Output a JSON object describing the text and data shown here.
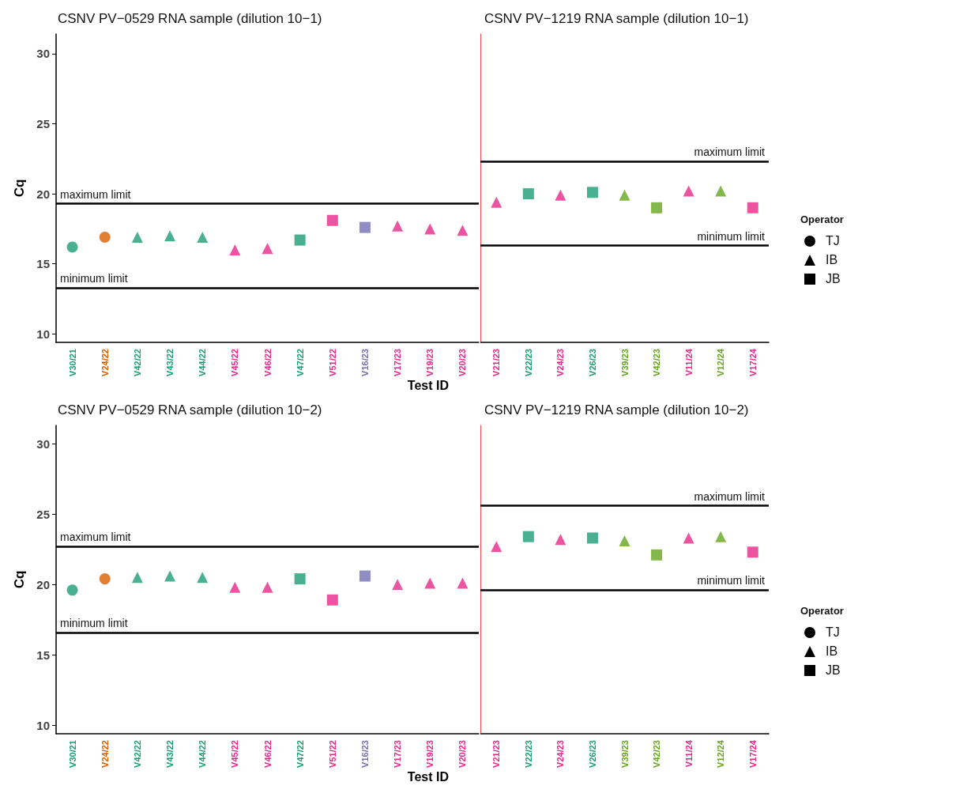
{
  "chart_data": [
    {
      "type": "scatter",
      "title": "CSNV PV−0529 RNA sample (dilution 10−1)",
      "xlabel": "Test ID",
      "ylabel": "Cq",
      "categories": [
        "V30/21",
        "V24/22",
        "V42/22",
        "V43/22",
        "V44/22",
        "V45/22",
        "V46/22",
        "V47/22",
        "V51/22",
        "V16/23",
        "V17/23",
        "V19/23",
        "V20/23"
      ],
      "ylim": [
        9.4,
        31.4
      ],
      "yticks": [
        10,
        15,
        20,
        25,
        30
      ],
      "grid": false,
      "series": [
        {
          "marker": "circle",
          "values": [
            16.2,
            16.9,
            null,
            null,
            null,
            null,
            null,
            null,
            null,
            null,
            null,
            null,
            null
          ],
          "colors": [
            "#1b9e77",
            "#d95f02",
            null,
            null,
            null,
            null,
            null,
            null,
            null,
            null,
            null,
            null,
            null
          ]
        },
        {
          "marker": "triangle",
          "values": [
            null,
            null,
            16.9,
            17.0,
            16.9,
            16.0,
            16.1,
            null,
            null,
            null,
            17.7,
            17.5,
            17.4
          ],
          "colors": [
            null,
            null,
            "#1b9e77",
            "#1b9e77",
            "#1b9e77",
            "#e7298a",
            "#e7298a",
            null,
            null,
            null,
            "#e7298a",
            "#e7298a",
            "#e7298a"
          ]
        },
        {
          "marker": "square",
          "values": [
            null,
            null,
            null,
            null,
            null,
            null,
            null,
            16.7,
            18.1,
            17.6,
            null,
            null,
            null
          ],
          "colors": [
            null,
            null,
            null,
            null,
            null,
            null,
            null,
            "#1b9e77",
            "#e7298a",
            "#7570b3",
            null,
            null,
            null
          ]
        }
      ],
      "ref_lines": [
        {
          "axis": "y",
          "value": 19.3,
          "label": "maximum limit"
        },
        {
          "axis": "y",
          "value": 13.3,
          "label": "minimum limit"
        }
      ]
    },
    {
      "type": "scatter",
      "title": "CSNV PV−1219 RNA sample (dilution 10−1)",
      "categories": [
        "V21/23",
        "V22/23",
        "V24/23",
        "V26/23",
        "V39/23",
        "V42/23",
        "V11/24",
        "V12/24",
        "V17/24"
      ],
      "ylim": [
        9.4,
        31.4
      ],
      "yticks": [
        10,
        15,
        20,
        25,
        30
      ],
      "tick_labels": "x",
      "grid": false,
      "annotations": [
        "Operator",
        "TJ",
        "IB",
        "JB"
      ],
      "series": [
        {
          "marker": "triangle",
          "values": [
            19.4,
            null,
            19.9,
            null,
            19.9,
            null,
            20.2,
            20.2,
            null
          ],
          "colors": [
            "#e7298a",
            null,
            "#e7298a",
            null,
            "#66a61e",
            null,
            "#e7298a",
            "#66a61e",
            null
          ]
        },
        {
          "marker": "square",
          "values": [
            null,
            20.0,
            null,
            20.1,
            null,
            19.0,
            null,
            null,
            19.0
          ],
          "colors": [
            null,
            "#1b9e77",
            null,
            "#1b9e77",
            null,
            "#66a61e",
            null,
            null,
            "#e7298a"
          ]
        }
      ],
      "ref_lines": [
        {
          "axis": "y",
          "value": 22.3,
          "label": "maximum limit"
        },
        {
          "axis": "y",
          "value": 16.3,
          "label": "minimum limit"
        }
      ]
    },
    {
      "type": "scatter",
      "title": "CSNV PV−0529 RNA sample (dilution 10−2)",
      "xlabel": "Test ID",
      "ylabel": "Cq",
      "categories": [
        "V30/21",
        "V24/22",
        "V42/22",
        "V43/22",
        "V44/22",
        "V45/22",
        "V46/22",
        "V47/22",
        "V51/22",
        "V16/23",
        "V17/23",
        "V19/23",
        "V20/23"
      ],
      "ylim": [
        9.4,
        31.3
      ],
      "yticks": [
        10,
        15,
        20,
        25,
        30
      ],
      "grid": false,
      "series": [
        {
          "marker": "circle",
          "values": [
            19.6,
            20.4,
            null,
            null,
            null,
            null,
            null,
            null,
            null,
            null,
            null,
            null,
            null
          ],
          "colors": [
            "#1b9e77",
            "#d95f02",
            null,
            null,
            null,
            null,
            null,
            null,
            null,
            null,
            null,
            null,
            null
          ]
        },
        {
          "marker": "triangle",
          "values": [
            null,
            null,
            20.5,
            20.6,
            20.5,
            19.8,
            19.8,
            null,
            null,
            null,
            20.0,
            20.1,
            20.1
          ],
          "colors": [
            null,
            null,
            "#1b9e77",
            "#1b9e77",
            "#1b9e77",
            "#e7298a",
            "#e7298a",
            null,
            null,
            null,
            "#e7298a",
            "#e7298a",
            "#e7298a"
          ]
        },
        {
          "marker": "square",
          "values": [
            null,
            null,
            null,
            null,
            null,
            null,
            null,
            20.4,
            18.9,
            20.6,
            null,
            null,
            null
          ],
          "colors": [
            null,
            null,
            null,
            null,
            null,
            null,
            null,
            "#1b9e77",
            "#e7298a",
            "#7570b3",
            null,
            null,
            null
          ]
        }
      ],
      "ref_lines": [
        {
          "axis": "y",
          "value": 22.7,
          "label": "maximum limit"
        },
        {
          "axis": "y",
          "value": 16.6,
          "label": "minimum limit"
        }
      ]
    },
    {
      "type": "scatter",
      "title": "CSNV PV−1219 RNA sample (dilution 10−2)",
      "categories": [
        "V21/23",
        "V22/23",
        "V24/23",
        "V26/23",
        "V39/23",
        "V42/23",
        "V11/24",
        "V12/24",
        "V17/24"
      ],
      "ylim": [
        9.4,
        31.3
      ],
      "yticks": [
        10,
        15,
        20,
        25,
        30
      ],
      "tick_labels": "x",
      "grid": false,
      "annotations": [
        "Operator",
        "TJ",
        "IB",
        "JB"
      ],
      "series": [
        {
          "marker": "triangle",
          "values": [
            22.7,
            null,
            23.2,
            null,
            23.1,
            null,
            23.3,
            23.4,
            null
          ],
          "colors": [
            "#e7298a",
            null,
            "#e7298a",
            null,
            "#66a61e",
            null,
            "#e7298a",
            "#66a61e",
            null
          ]
        },
        {
          "marker": "square",
          "values": [
            null,
            23.4,
            null,
            23.3,
            null,
            22.1,
            null,
            null,
            22.3
          ],
          "colors": [
            null,
            "#1b9e77",
            null,
            "#1b9e77",
            null,
            "#66a61e",
            null,
            null,
            "#e7298a"
          ]
        }
      ],
      "ref_lines": [
        {
          "axis": "y",
          "value": 25.6,
          "label": "maximum limit"
        },
        {
          "axis": "y",
          "value": 19.6,
          "label": "minimum limit"
        }
      ]
    }
  ]
}
